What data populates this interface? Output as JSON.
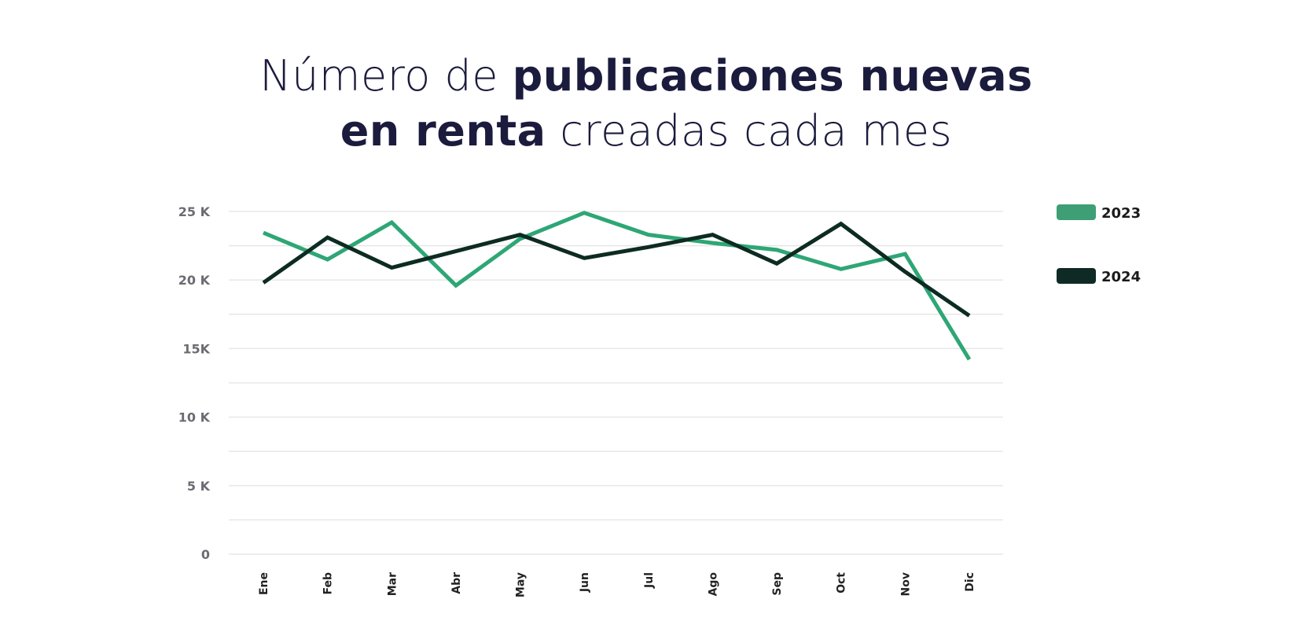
{
  "title": {
    "line1_regular": "Número de ",
    "line1_bold": "publicaciones nuevas",
    "line2_bold": "en renta",
    "line2_regular": " creadas cada mes"
  },
  "chart_data": {
    "type": "line",
    "title": "Número de publicaciones nuevas en renta creadas cada mes",
    "xlabel": "",
    "ylabel": "",
    "categories": [
      "Ene",
      "Feb",
      "Mar",
      "Abr",
      "May",
      "Jun",
      "Jul",
      "Ago",
      "Sep",
      "Oct",
      "Nov",
      "Dic"
    ],
    "ylim": [
      0,
      25000
    ],
    "yticks": [
      0,
      5000,
      10000,
      15000,
      20000,
      25000
    ],
    "ytick_labels": [
      "0",
      "5 K",
      "10 K",
      "15K",
      "20 K",
      "25 K"
    ],
    "grid": true,
    "legend_position": "right",
    "series": [
      {
        "name": "2023",
        "color": "#2ea676",
        "values": [
          23450,
          21500,
          24200,
          19600,
          23000,
          24900,
          23300,
          22700,
          22200,
          20800,
          21900,
          14200
        ]
      },
      {
        "name": "2024",
        "color": "#0d2b22",
        "values": [
          19800,
          23100,
          20900,
          22100,
          23300,
          21600,
          22400,
          23300,
          21200,
          24100,
          20600,
          17400
        ]
      }
    ],
    "legend_swatch_colors": {
      "2023": "#3e9e76",
      "2024": "#0f2a24"
    }
  }
}
